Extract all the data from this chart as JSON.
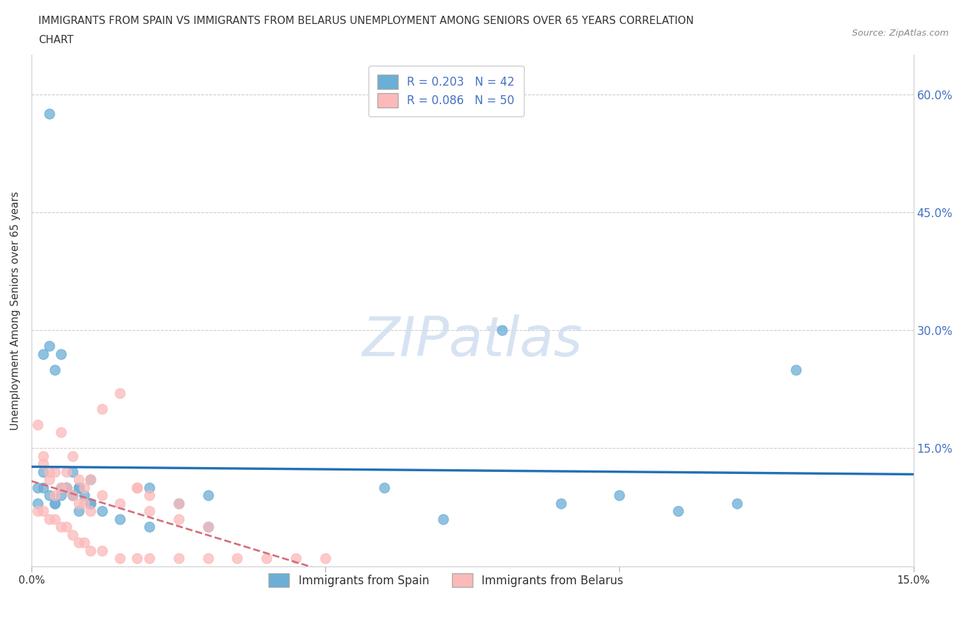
{
  "title_line1": "IMMIGRANTS FROM SPAIN VS IMMIGRANTS FROM BELARUS UNEMPLOYMENT AMONG SENIORS OVER 65 YEARS CORRELATION",
  "title_line2": "CHART",
  "source": "Source: ZipAtlas.com",
  "ylabel": "Unemployment Among Seniors over 65 years",
  "color_spain": "#6baed6",
  "color_belarus": "#fcb9b9",
  "line_spain": "#2171b5",
  "line_belarus": "#d46f7a",
  "R_spain": 0.203,
  "N_spain": 42,
  "R_belarus": 0.086,
  "N_belarus": 50,
  "xlim": [
    0,
    0.15
  ],
  "ylim": [
    0,
    0.65
  ],
  "ytick_vals": [
    0.0,
    0.15,
    0.3,
    0.45,
    0.6
  ],
  "ytick_labels": [
    "",
    "15.0%",
    "30.0%",
    "45.0%",
    "60.0%"
  ],
  "xtick_vals": [
    0.0,
    0.05,
    0.1,
    0.15
  ],
  "xtick_labels": [
    "0.0%",
    "",
    "",
    "15.0%"
  ],
  "watermark": "ZIPatlas",
  "legend_top_labels": [
    "R = 0.203   N = 42",
    "R = 0.086   N = 50"
  ],
  "legend_bottom_labels": [
    "Immigrants from Spain",
    "Immigrants from Belarus"
  ],
  "spain_x": [
    0.003,
    0.001,
    0.002,
    0.004,
    0.005,
    0.006,
    0.007,
    0.008,
    0.009,
    0.01,
    0.002,
    0.003,
    0.004,
    0.005,
    0.006,
    0.007,
    0.008,
    0.01,
    0.012,
    0.015,
    0.02,
    0.025,
    0.03,
    0.001,
    0.002,
    0.003,
    0.004,
    0.005,
    0.006,
    0.007,
    0.008,
    0.01,
    0.02,
    0.03,
    0.06,
    0.09,
    0.1,
    0.11,
    0.12,
    0.13,
    0.07,
    0.08
  ],
  "spain_y": [
    0.575,
    0.1,
    0.12,
    0.08,
    0.1,
    0.1,
    0.12,
    0.1,
    0.09,
    0.11,
    0.27,
    0.28,
    0.25,
    0.27,
    0.1,
    0.09,
    0.1,
    0.08,
    0.07,
    0.06,
    0.05,
    0.08,
    0.05,
    0.08,
    0.1,
    0.09,
    0.08,
    0.09,
    0.1,
    0.09,
    0.07,
    0.08,
    0.1,
    0.09,
    0.1,
    0.08,
    0.09,
    0.07,
    0.08,
    0.25,
    0.06,
    0.3
  ],
  "belarus_x": [
    0.001,
    0.002,
    0.003,
    0.004,
    0.005,
    0.006,
    0.007,
    0.008,
    0.009,
    0.01,
    0.012,
    0.015,
    0.018,
    0.02,
    0.025,
    0.002,
    0.003,
    0.004,
    0.005,
    0.006,
    0.007,
    0.008,
    0.009,
    0.01,
    0.012,
    0.015,
    0.018,
    0.02,
    0.025,
    0.03,
    0.001,
    0.002,
    0.003,
    0.004,
    0.005,
    0.006,
    0.007,
    0.008,
    0.009,
    0.01,
    0.012,
    0.015,
    0.018,
    0.02,
    0.025,
    0.03,
    0.035,
    0.04,
    0.045,
    0.05
  ],
  "belarus_y": [
    0.18,
    0.14,
    0.12,
    0.09,
    0.17,
    0.12,
    0.14,
    0.11,
    0.1,
    0.11,
    0.2,
    0.22,
    0.1,
    0.09,
    0.08,
    0.13,
    0.11,
    0.12,
    0.1,
    0.1,
    0.09,
    0.08,
    0.08,
    0.07,
    0.09,
    0.08,
    0.1,
    0.07,
    0.06,
    0.05,
    0.07,
    0.07,
    0.06,
    0.06,
    0.05,
    0.05,
    0.04,
    0.03,
    0.03,
    0.02,
    0.02,
    0.01,
    0.01,
    0.01,
    0.01,
    0.01,
    0.01,
    0.01,
    0.01,
    0.01
  ]
}
